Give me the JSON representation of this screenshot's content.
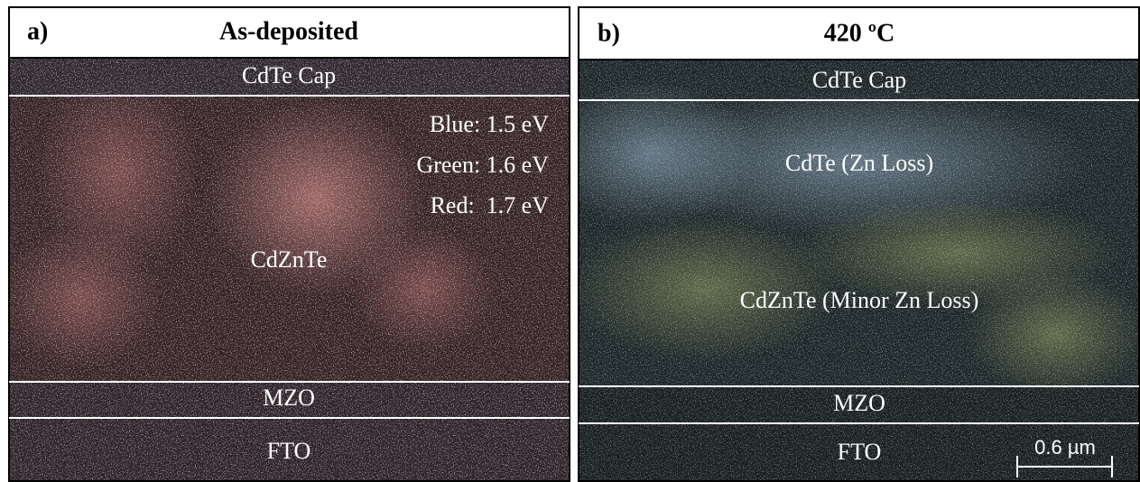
{
  "panels": [
    {
      "label": "a)",
      "title": "As-deposited",
      "layers": [
        "CdTe Cap",
        "CdZnTe",
        "MZO",
        "FTO"
      ],
      "legend": [
        "Blue: 1.5 eV",
        "Green: 1.6 eV",
        "Red:  1.7 eV"
      ]
    },
    {
      "label": "b)",
      "title": "420 ºC",
      "layers": [
        "CdTe Cap",
        "CdTe (Zn Loss)",
        "CdZnTe (Minor Zn Loss)",
        "MZO",
        "FTO"
      ],
      "scale_bar": "0.6 µm"
    }
  ]
}
